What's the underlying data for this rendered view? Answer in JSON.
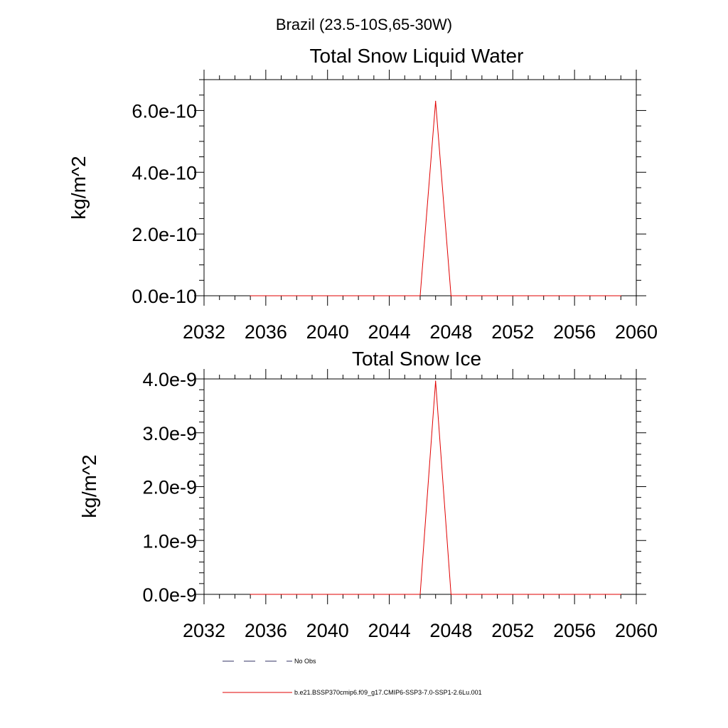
{
  "main_title": "Brazil (23.5-10S,65-30W)",
  "legend": [
    {
      "label": "No Obs",
      "color": "#333366",
      "dash": "dashed"
    },
    {
      "label": "b.e21.BSSP370cmip6.f09_g17.CMIP6-SSP3-7.0-SSP1-2.6Lu.001",
      "color": "#e00000",
      "dash": "solid"
    }
  ],
  "chart_data": [
    {
      "type": "line",
      "title": "Total Snow Liquid Water",
      "ylabel": "kg/m^2",
      "xlim": [
        2032,
        2060
      ],
      "ylim": [
        0,
        7e-10
      ],
      "xticks": [
        2032,
        2036,
        2040,
        2044,
        2048,
        2052,
        2056,
        2060
      ],
      "xtick_labels": [
        "2032",
        "2036",
        "2040",
        "2044",
        "2048",
        "2052",
        "2056",
        "2060"
      ],
      "yticks": [
        0,
        2e-10,
        4e-10,
        6e-10
      ],
      "ytick_labels": [
        "0.0e-10",
        "2.0e-10",
        "4.0e-10",
        "6.0e-10"
      ],
      "series": [
        {
          "name": "b.e21.BSSP370cmip6.f09_g17.CMIP6-SSP3-7.0-SSP1-2.6Lu.001",
          "color": "#e00000",
          "x": [
            2035,
            2036,
            2037,
            2038,
            2039,
            2040,
            2041,
            2042,
            2043,
            2044,
            2045,
            2046,
            2047,
            2048,
            2049,
            2050,
            2051,
            2052,
            2053,
            2054,
            2055,
            2056,
            2057,
            2058,
            2059
          ],
          "y": [
            0,
            0,
            0,
            0,
            0,
            0,
            0,
            0,
            0,
            0,
            0,
            0,
            6.3e-10,
            0,
            0,
            0,
            0,
            0,
            0,
            0,
            0,
            0,
            0,
            0,
            0
          ]
        }
      ]
    },
    {
      "type": "line",
      "title": "Total Snow Ice",
      "ylabel": "kg/m^2",
      "xlim": [
        2032,
        2060
      ],
      "ylim": [
        0,
        4e-09
      ],
      "xticks": [
        2032,
        2036,
        2040,
        2044,
        2048,
        2052,
        2056,
        2060
      ],
      "xtick_labels": [
        "2032",
        "2036",
        "2040",
        "2044",
        "2048",
        "2052",
        "2056",
        "2060"
      ],
      "yticks": [
        0,
        1e-09,
        2e-09,
        3e-09,
        4e-09
      ],
      "ytick_labels": [
        "0.0e-9",
        "1.0e-9",
        "2.0e-9",
        "3.0e-9",
        "4.0e-9"
      ],
      "series": [
        {
          "name": "b.e21.BSSP370cmip6.f09_g17.CMIP6-SSP3-7.0-SSP1-2.6Lu.001",
          "color": "#e00000",
          "x": [
            2035,
            2036,
            2037,
            2038,
            2039,
            2040,
            2041,
            2042,
            2043,
            2044,
            2045,
            2046,
            2047,
            2048,
            2049,
            2050,
            2051,
            2052,
            2053,
            2054,
            2055,
            2056,
            2057,
            2058,
            2059
          ],
          "y": [
            0,
            0,
            0,
            0,
            0,
            0,
            0,
            0,
            0,
            0,
            0,
            0,
            3.96e-09,
            0,
            0,
            0,
            0,
            0,
            0,
            0,
            0,
            0,
            0,
            0,
            0
          ]
        }
      ]
    }
  ]
}
